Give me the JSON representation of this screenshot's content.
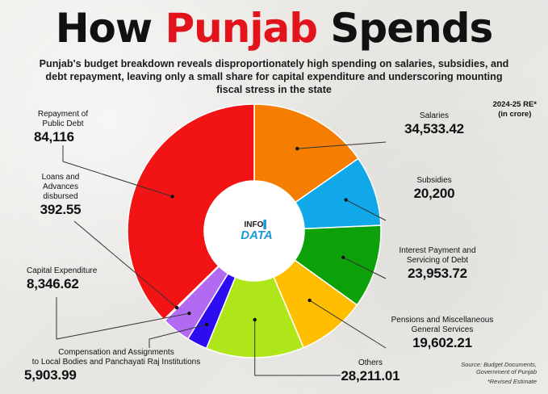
{
  "header": {
    "title_part1": "How ",
    "title_highlight": "Punjab",
    "title_part2": " Spends",
    "subtitle": "Punjab's budget breakdown reveals disproportionately high spending on salaries, subsidies, and debt repayment, leaving only a small share for capital expenditure and underscoring mounting fiscal stress in the state"
  },
  "notes": {
    "period_line1": "2024-25 RE*",
    "period_line2": "(in crore)",
    "source_line1": "Source: Budget Documents,",
    "source_line2": "Government of Punjab",
    "revised": "*Revised Estimate"
  },
  "logo": {
    "line1": "INFO",
    "line2": "DATA"
  },
  "colors": {
    "title_accent": "#e3131b",
    "leader_line": "#333333",
    "logo_blue": "#1d97d6"
  },
  "chart_data": {
    "type": "pie",
    "subtype": "donut",
    "unit": "crore",
    "slices": [
      {
        "label": "Salaries",
        "value": 34533.42,
        "display": "34,533.42",
        "color": "#f57d00"
      },
      {
        "label": "Subsidies",
        "value": 20200,
        "display": "20,200",
        "color": "#10a8e8"
      },
      {
        "label": "Interest Payment and Servicing of Debt",
        "value": 23953.72,
        "display": "23,953.72",
        "color": "#0ca109"
      },
      {
        "label": "Pensions and Miscellaneous General Services",
        "value": 19602.21,
        "display": "19,602.21",
        "color": "#ffbf00"
      },
      {
        "label": "Others",
        "value": 28211.01,
        "display": "28,211.01",
        "color": "#aee61a"
      },
      {
        "label": "Compensation and Assignments to Local Bodies and Panchayati Raj Institutions",
        "value": 5903.99,
        "display": "5,903.99",
        "color": "#2d0cf2"
      },
      {
        "label": "Capital Expenditure",
        "value": 8346.62,
        "display": "8,346.62",
        "color": "#b26af2"
      },
      {
        "label": "Loans and Advances disbursed",
        "value": 392.55,
        "display": "392.55",
        "color": "#7a3cc0"
      },
      {
        "label": "Repayment of Public Debt",
        "value": 84116,
        "display": "84,116",
        "color": "#f21414"
      }
    ]
  },
  "labels": {
    "salaries": {
      "name": "Salaries",
      "value": "34,533.42"
    },
    "subsidies": {
      "name": "Subsidies",
      "value": "20,200"
    },
    "interest": {
      "name_line1": "Interest Payment and",
      "name_line2": "Servicing of Debt",
      "value": "23,953.72"
    },
    "pensions": {
      "name_line1": "Pensions and Miscellaneous",
      "name_line2": "General Services",
      "value": "19,602.21"
    },
    "others": {
      "name": "Others",
      "value": "28,211.01"
    },
    "compensation": {
      "name_line1": "Compensation and Assignments",
      "name_line2": "to Local Bodies and Panchayati Raj Institutions",
      "value": "5,903.99"
    },
    "capex": {
      "name": "Capital Expenditure",
      "value": "8,346.62"
    },
    "loans": {
      "name_line1": "Loans and",
      "name_line2": "Advances",
      "name_line3": "disbursed",
      "value": "392.55"
    },
    "repayment": {
      "name_line1": "Repayment of",
      "name_line2": "Public Debt",
      "value": "84,116"
    }
  }
}
